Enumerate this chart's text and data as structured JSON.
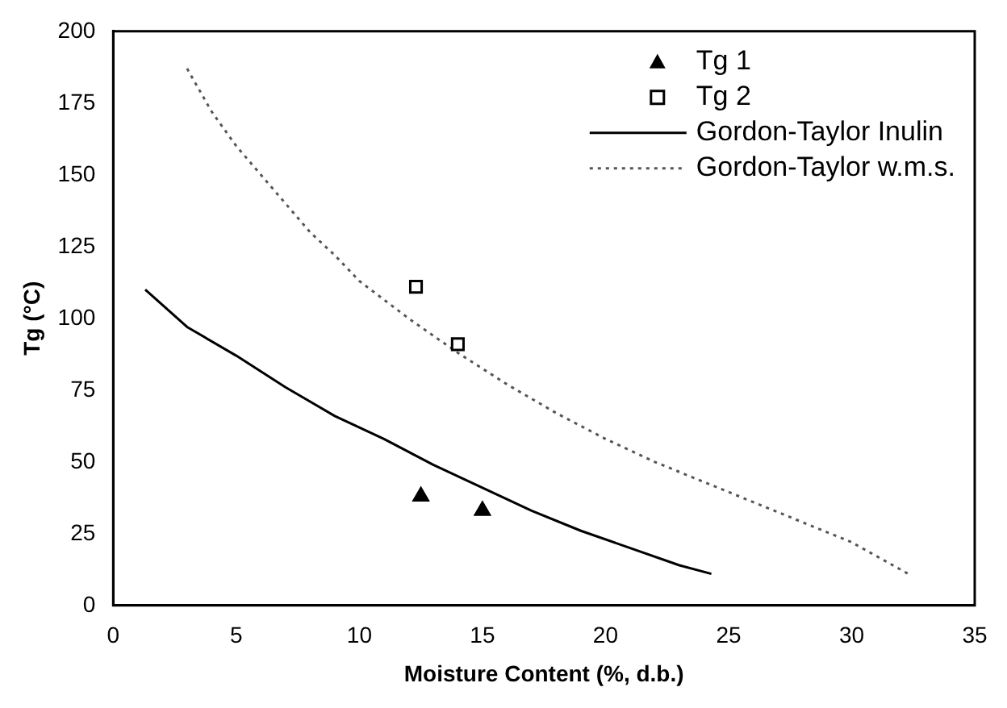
{
  "chart_data": {
    "type": "scatter",
    "xlabel": "Moisture Content (%, d.b.)",
    "ylabel": "Tg (°C)",
    "xlim": [
      0,
      35
    ],
    "xticks": [
      0,
      5,
      10,
      15,
      20,
      25,
      30,
      35
    ],
    "ylim": [
      0,
      200
    ],
    "yticks": [
      0,
      25,
      50,
      75,
      100,
      125,
      150,
      175,
      200
    ],
    "grid": false,
    "legend": "top right",
    "series": [
      {
        "name": "Tg 1",
        "type": "scatter",
        "marker": "triangle",
        "color": "#000000",
        "x": [
          12.5,
          15
        ],
        "values": [
          38,
          33
        ]
      },
      {
        "name": "Tg 2",
        "type": "scatter",
        "marker": "square",
        "color": "#000000",
        "x": [
          12.3,
          14
        ],
        "values": [
          111,
          91
        ]
      },
      {
        "name": "Gordon-Taylor Inulin",
        "type": "line",
        "marker": "none",
        "line_style": "solid",
        "color": "#000000",
        "x": [
          1.3,
          3,
          5,
          7,
          9,
          11,
          13,
          15,
          17,
          19,
          21,
          23,
          24.3
        ],
        "values": [
          110,
          97,
          87,
          76,
          66,
          58,
          49,
          41,
          33,
          26,
          20,
          14,
          11
        ]
      },
      {
        "name": "Gordon-Taylor w.m.s.",
        "type": "line",
        "marker": "none",
        "line_style": "dotted",
        "color": "#555555",
        "x": [
          3,
          4,
          5,
          6,
          7,
          8,
          9,
          10,
          12,
          14,
          16,
          18,
          20,
          22,
          24,
          26,
          28,
          30,
          32.3
        ],
        "values": [
          187,
          172,
          160,
          150,
          140,
          130,
          122,
          113,
          100,
          88,
          77,
          67,
          58,
          50,
          43,
          36,
          29,
          22,
          11
        ]
      }
    ]
  }
}
